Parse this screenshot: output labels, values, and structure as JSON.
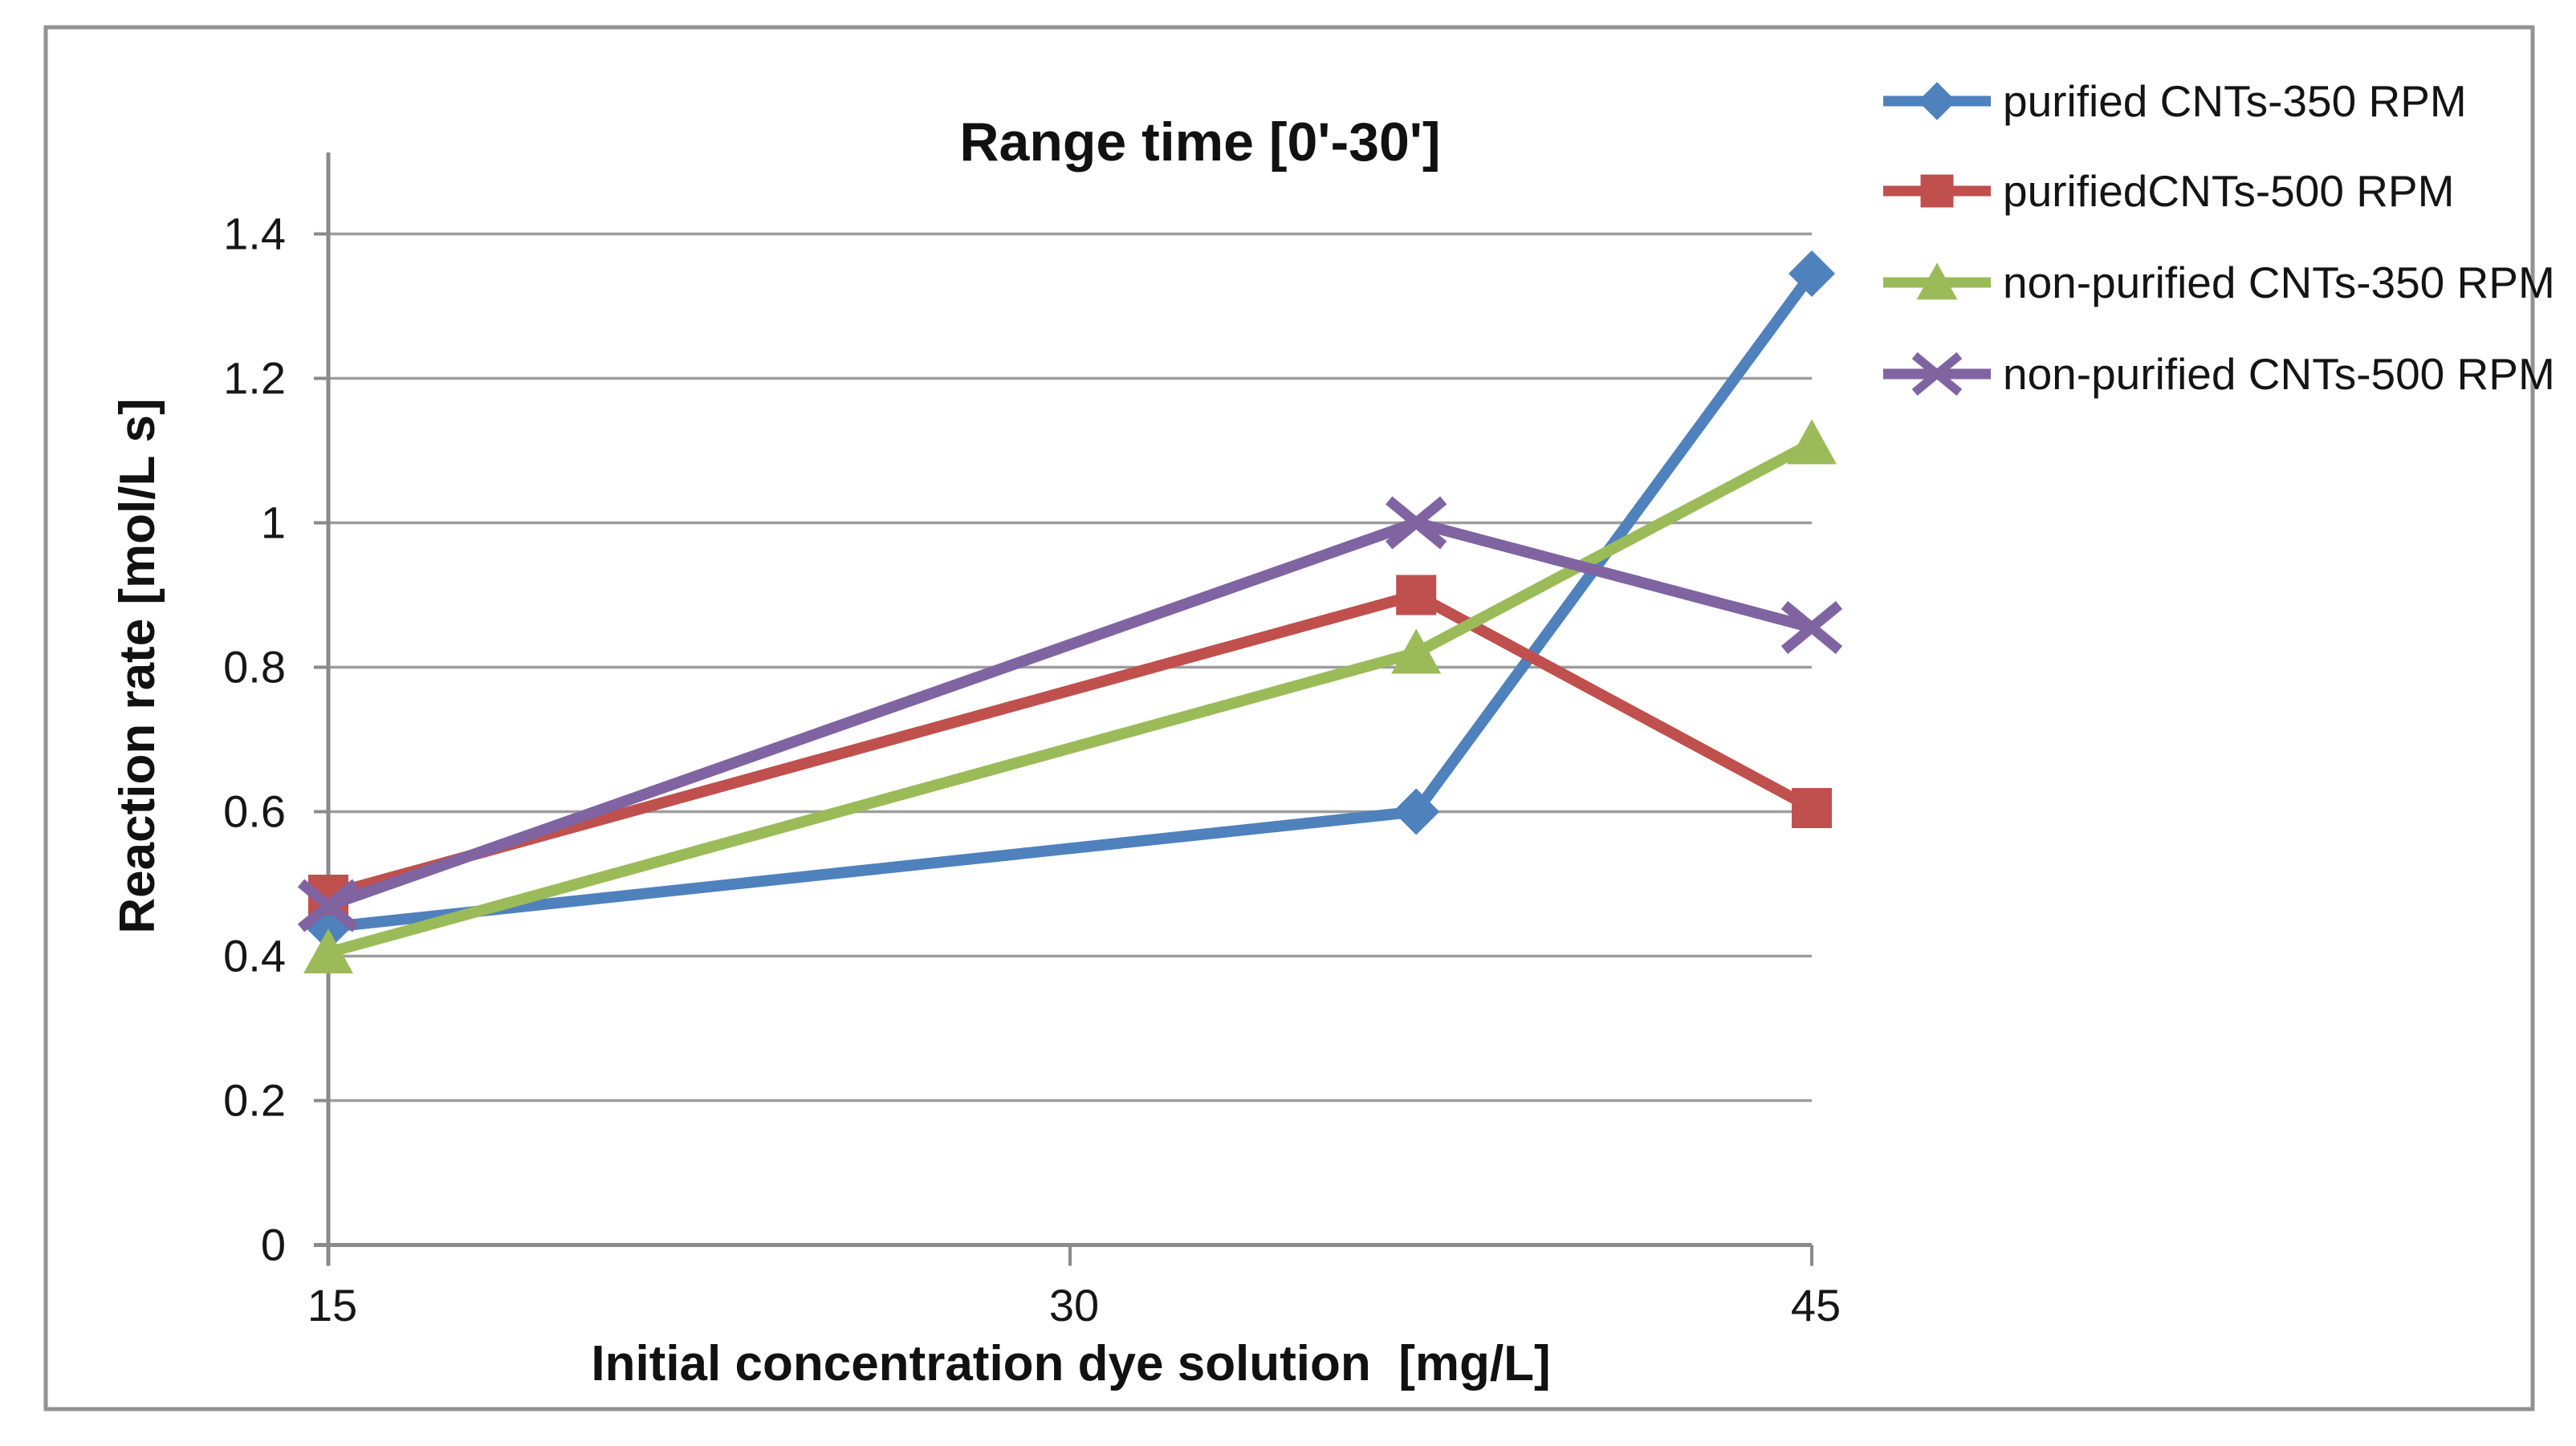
{
  "chart_data": {
    "type": "line",
    "title": "Range time [0'-30']",
    "xlabel": "Initial concentration dye solution  [mg/L]",
    "ylabel": "Reaction rate [mol/L s]",
    "x": [
      15,
      37,
      45
    ],
    "x_axis": {
      "min": 15,
      "max": 45,
      "ticks": [
        15,
        30,
        45
      ],
      "tick_labels": [
        "15",
        "30",
        "45"
      ]
    },
    "y_axis": {
      "min": 0,
      "max": 1.5,
      "ticks": [
        0,
        0.2,
        0.4,
        0.6,
        0.8,
        1,
        1.2,
        1.4
      ],
      "tick_labels": [
        "0",
        "0.2",
        "0.4",
        "0.6",
        "0.8",
        "1",
        "1.2",
        "1.4"
      ]
    },
    "grid": "horizontal",
    "legend_position": "right",
    "series": [
      {
        "name": "purified CNTs-350 RPM",
        "color": "#4F81BD",
        "marker": "diamond",
        "values": [
          0.44,
          0.6,
          1.345
        ]
      },
      {
        "name": "purifiedCNTs-500 RPM",
        "color": "#C0504D",
        "marker": "square",
        "values": [
          0.485,
          0.9,
          0.605
        ]
      },
      {
        "name": "non-purified CNTs-350 RPM",
        "color": "#9BBB59",
        "marker": "triangle",
        "values": [
          0.405,
          0.82,
          1.11
        ]
      },
      {
        "name": "non-purified CNTs-500 RPM",
        "color": "#8064A2",
        "marker": "x",
        "values": [
          0.47,
          1.0,
          0.855
        ]
      }
    ],
    "colors": {
      "gridline": "#9d9d9d",
      "axis": "#8a8a8a",
      "figure_border": "#929292",
      "text": "#141414",
      "background": "#ffffff"
    }
  }
}
